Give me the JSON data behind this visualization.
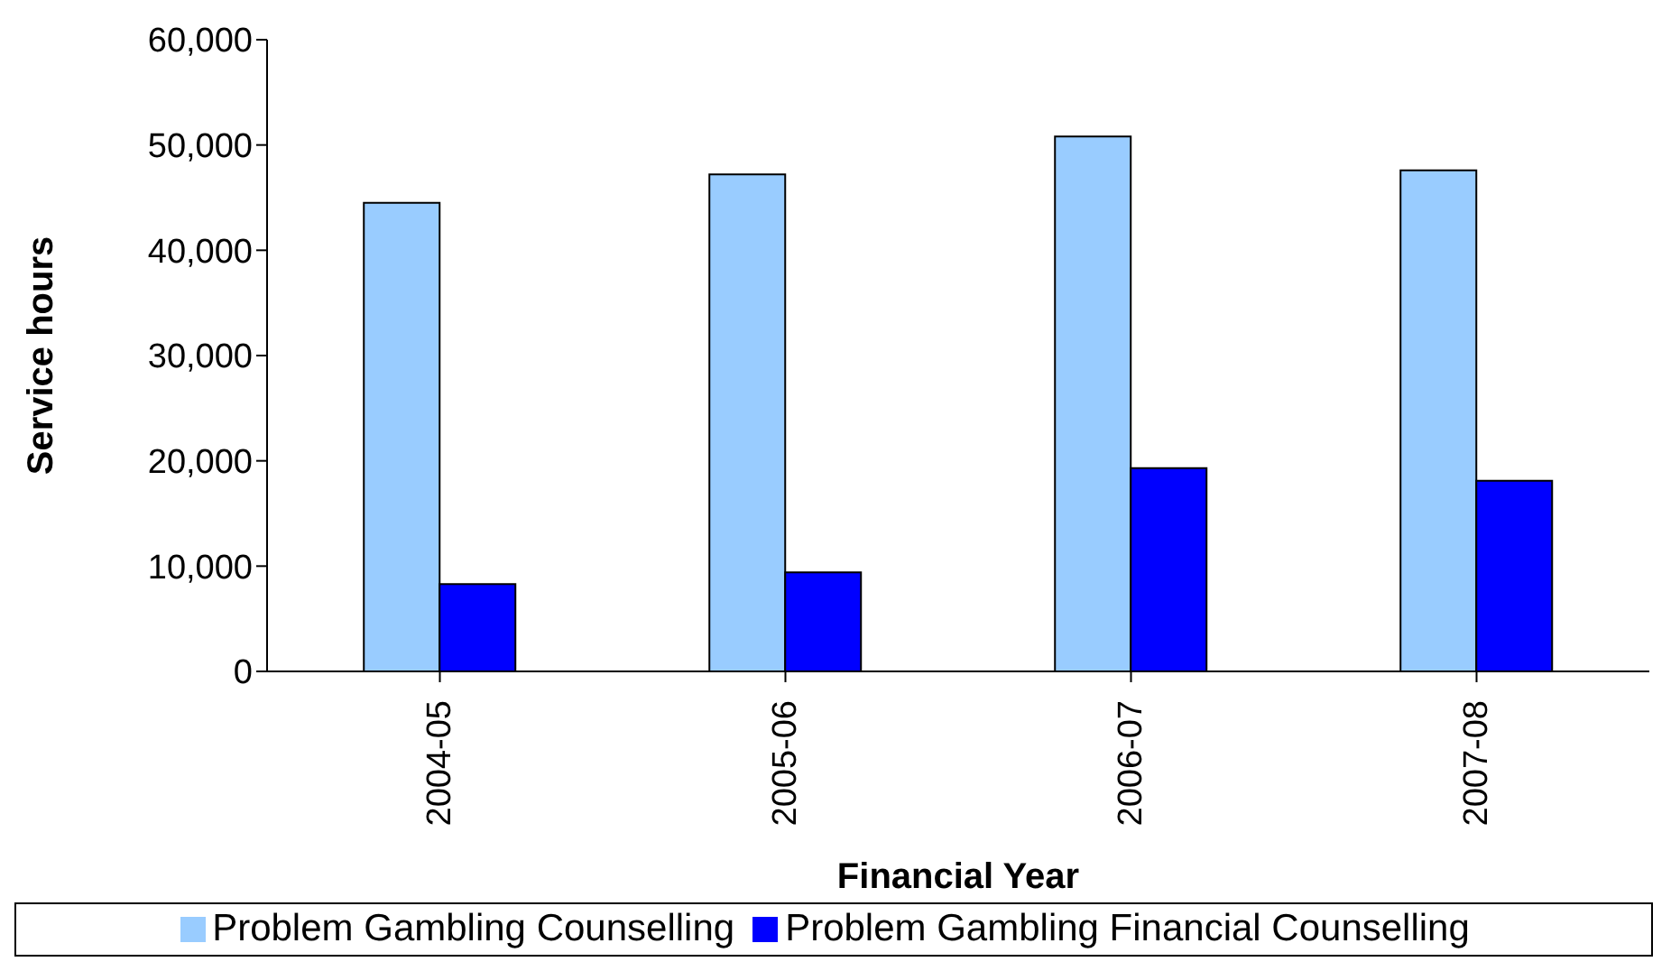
{
  "chart_data": {
    "type": "bar",
    "categories": [
      "2004-05",
      "2005-06",
      "2006-07",
      "2007-08"
    ],
    "series": [
      {
        "name": "Problem Gambling Counselling",
        "color": "#99ccff",
        "values": [
          44500,
          47200,
          50800,
          47600
        ]
      },
      {
        "name": "Problem Gambling Financial Counselling",
        "color": "#0000ff",
        "values": [
          8300,
          9400,
          19300,
          18100
        ]
      }
    ],
    "xlabel": "Financial Year",
    "ylabel": "Service hours",
    "ylim": [
      0,
      60000
    ],
    "yticks": [
      0,
      {
        "value": 10000,
        "label": "10,000"
      },
      {
        "value": 20000,
        "label": "20,000"
      },
      {
        "value": 30000,
        "label": "30,000"
      },
      {
        "value": 40000,
        "label": "40,000"
      },
      {
        "value": 50000,
        "label": "50,000"
      },
      {
        "value": 60000,
        "label": "60,000"
      }
    ],
    "grid": false,
    "legend": "bottom"
  }
}
